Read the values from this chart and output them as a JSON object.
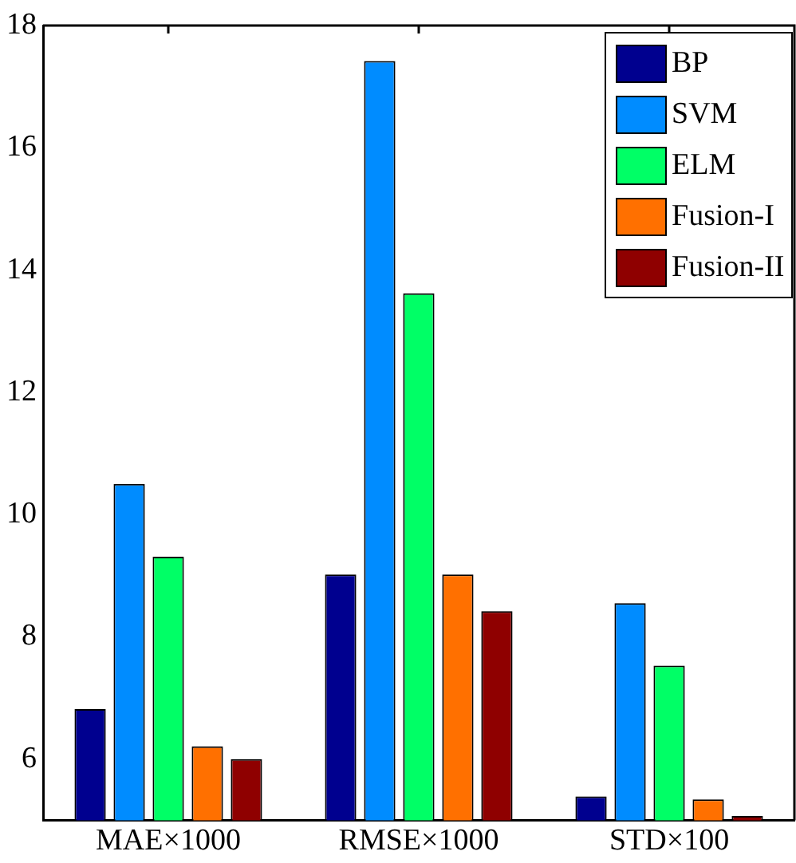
{
  "chart_data": {
    "type": "bar",
    "categories": [
      "MAE×1000",
      "RMSE×1000",
      "STD×100"
    ],
    "series": [
      {
        "name": "BP",
        "color": "#00008f",
        "values": [
          6.82,
          9.02,
          5.39
        ]
      },
      {
        "name": "SVM",
        "color": "#008cff",
        "values": [
          10.5,
          17.42,
          8.55
        ]
      },
      {
        "name": "ELM",
        "color": "#00ff66",
        "values": [
          9.31,
          13.62,
          7.53
        ]
      },
      {
        "name": "Fusion-I",
        "color": "#ff7000",
        "values": [
          6.21,
          9.02,
          5.34
        ]
      },
      {
        "name": "Fusion-II",
        "color": "#8f0000",
        "values": [
          6.0,
          8.42,
          5.07
        ]
      }
    ],
    "ylim": [
      5,
      18
    ],
    "yticks": [
      6,
      8,
      10,
      12,
      14,
      16,
      18
    ],
    "grid": false,
    "legend": "top right"
  }
}
